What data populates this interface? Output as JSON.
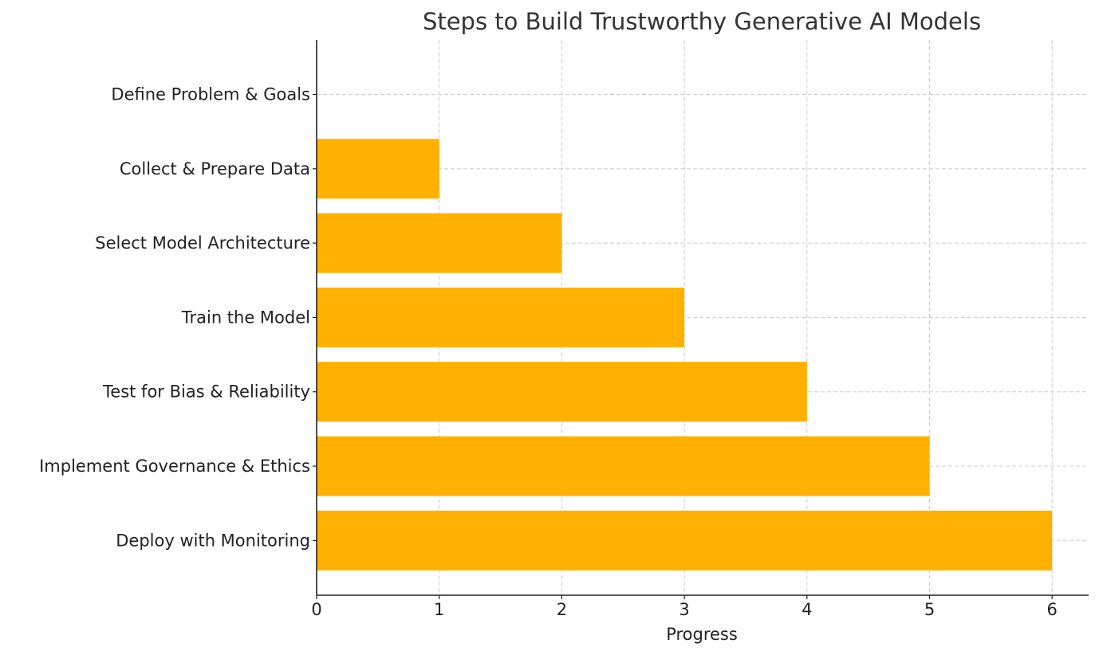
{
  "chart_data": {
    "type": "bar",
    "orientation": "horizontal",
    "title": "Steps to Build Trustworthy Generative AI Models",
    "xlabel": "Progress",
    "ylabel": "",
    "categories": [
      "Define Problem & Goals",
      "Collect & Prepare Data",
      "Select Model Architecture",
      "Train the Model",
      "Test for Bias & Reliability",
      "Implement Governance & Ethics",
      "Deploy with Monitoring"
    ],
    "values": [
      0,
      1,
      2,
      3,
      4,
      5,
      6
    ],
    "xlim": [
      0,
      6.3
    ],
    "xticks": [
      "0",
      "1",
      "2",
      "3",
      "4",
      "5",
      "6"
    ],
    "grid": true,
    "bar_color": "#FFB000"
  }
}
